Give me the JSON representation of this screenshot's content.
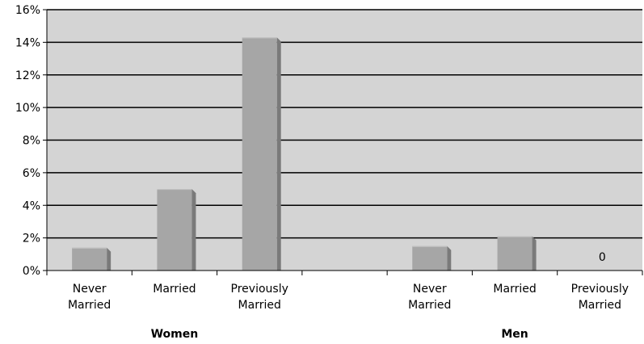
{
  "chart_data": {
    "type": "bar",
    "title": "",
    "xlabel": "",
    "ylabel": "",
    "ylim": [
      0,
      16
    ],
    "yticks": [
      "0%",
      "2%",
      "4%",
      "6%",
      "8%",
      "10%",
      "12%",
      "14%",
      "16%"
    ],
    "ytick_values": [
      0,
      2,
      4,
      6,
      8,
      10,
      12,
      14,
      16
    ],
    "grid": true,
    "legend": "none",
    "groups": [
      {
        "name": "Women",
        "categories": [
          {
            "label": [
              "Never",
              "Married"
            ],
            "value": 1.4
          },
          {
            "label": [
              "Married"
            ],
            "value": 5.0
          },
          {
            "label": [
              "Previously",
              "Married"
            ],
            "value": 14.3
          }
        ]
      },
      {
        "name": "Men",
        "categories": [
          {
            "label": [
              "Never",
              "Married"
            ],
            "value": 1.5
          },
          {
            "label": [
              "Married"
            ],
            "value": 2.1
          },
          {
            "label": [
              "Previously",
              "Married"
            ],
            "value": 0,
            "data_label": "0"
          }
        ]
      }
    ],
    "colors": {
      "plot_bg": "#d4d4d4",
      "bar_front": "#a6a6a6",
      "bar_side": "#7a7a7a",
      "bar_top": "#c4c4c4",
      "gridline": "#000000"
    }
  }
}
